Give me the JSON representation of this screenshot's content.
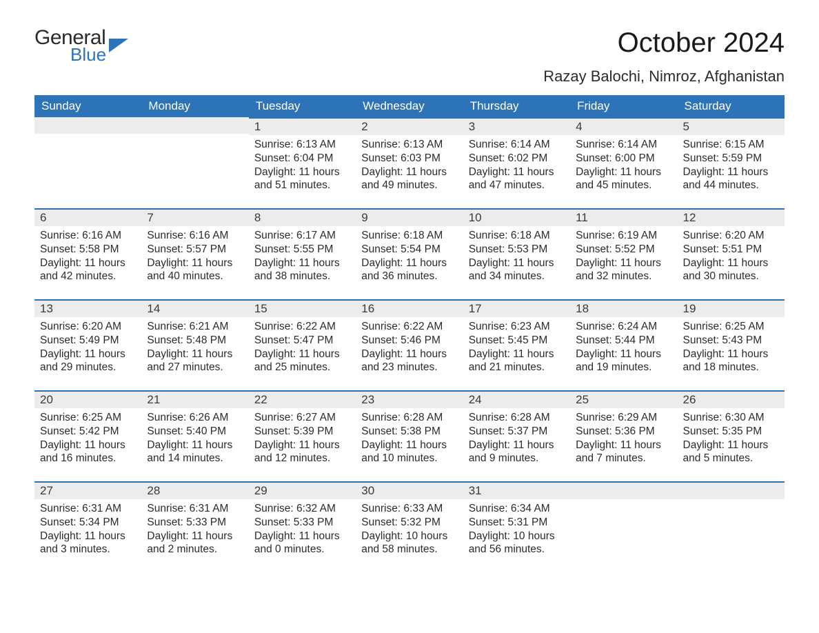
{
  "logo": {
    "word1": "General",
    "word2": "Blue"
  },
  "title": "October 2024",
  "subtitle": "Razay Balochi, Nimroz, Afghanistan",
  "day_headers": [
    "Sunday",
    "Monday",
    "Tuesday",
    "Wednesday",
    "Thursday",
    "Friday",
    "Saturday"
  ],
  "colors": {
    "header_bg": "#2d73b8",
    "header_text": "#ffffff",
    "daynum_bg": "#ececec",
    "accent_border": "#2d73b8",
    "body_text": "#2b2b2b",
    "page_bg": "#ffffff"
  },
  "fonts": {
    "title_size_pt": 30,
    "subtitle_size_pt": 17,
    "header_size_pt": 13,
    "body_size_pt": 12
  },
  "weeks": [
    [
      {
        "n": "",
        "sr": "",
        "ss": "",
        "dl1": "",
        "dl2": ""
      },
      {
        "n": "",
        "sr": "",
        "ss": "",
        "dl1": "",
        "dl2": ""
      },
      {
        "n": "1",
        "sr": "Sunrise: 6:13 AM",
        "ss": "Sunset: 6:04 PM",
        "dl1": "Daylight: 11 hours",
        "dl2": "and 51 minutes."
      },
      {
        "n": "2",
        "sr": "Sunrise: 6:13 AM",
        "ss": "Sunset: 6:03 PM",
        "dl1": "Daylight: 11 hours",
        "dl2": "and 49 minutes."
      },
      {
        "n": "3",
        "sr": "Sunrise: 6:14 AM",
        "ss": "Sunset: 6:02 PM",
        "dl1": "Daylight: 11 hours",
        "dl2": "and 47 minutes."
      },
      {
        "n": "4",
        "sr": "Sunrise: 6:14 AM",
        "ss": "Sunset: 6:00 PM",
        "dl1": "Daylight: 11 hours",
        "dl2": "and 45 minutes."
      },
      {
        "n": "5",
        "sr": "Sunrise: 6:15 AM",
        "ss": "Sunset: 5:59 PM",
        "dl1": "Daylight: 11 hours",
        "dl2": "and 44 minutes."
      }
    ],
    [
      {
        "n": "6",
        "sr": "Sunrise: 6:16 AM",
        "ss": "Sunset: 5:58 PM",
        "dl1": "Daylight: 11 hours",
        "dl2": "and 42 minutes."
      },
      {
        "n": "7",
        "sr": "Sunrise: 6:16 AM",
        "ss": "Sunset: 5:57 PM",
        "dl1": "Daylight: 11 hours",
        "dl2": "and 40 minutes."
      },
      {
        "n": "8",
        "sr": "Sunrise: 6:17 AM",
        "ss": "Sunset: 5:55 PM",
        "dl1": "Daylight: 11 hours",
        "dl2": "and 38 minutes."
      },
      {
        "n": "9",
        "sr": "Sunrise: 6:18 AM",
        "ss": "Sunset: 5:54 PM",
        "dl1": "Daylight: 11 hours",
        "dl2": "and 36 minutes."
      },
      {
        "n": "10",
        "sr": "Sunrise: 6:18 AM",
        "ss": "Sunset: 5:53 PM",
        "dl1": "Daylight: 11 hours",
        "dl2": "and 34 minutes."
      },
      {
        "n": "11",
        "sr": "Sunrise: 6:19 AM",
        "ss": "Sunset: 5:52 PM",
        "dl1": "Daylight: 11 hours",
        "dl2": "and 32 minutes."
      },
      {
        "n": "12",
        "sr": "Sunrise: 6:20 AM",
        "ss": "Sunset: 5:51 PM",
        "dl1": "Daylight: 11 hours",
        "dl2": "and 30 minutes."
      }
    ],
    [
      {
        "n": "13",
        "sr": "Sunrise: 6:20 AM",
        "ss": "Sunset: 5:49 PM",
        "dl1": "Daylight: 11 hours",
        "dl2": "and 29 minutes."
      },
      {
        "n": "14",
        "sr": "Sunrise: 6:21 AM",
        "ss": "Sunset: 5:48 PM",
        "dl1": "Daylight: 11 hours",
        "dl2": "and 27 minutes."
      },
      {
        "n": "15",
        "sr": "Sunrise: 6:22 AM",
        "ss": "Sunset: 5:47 PM",
        "dl1": "Daylight: 11 hours",
        "dl2": "and 25 minutes."
      },
      {
        "n": "16",
        "sr": "Sunrise: 6:22 AM",
        "ss": "Sunset: 5:46 PM",
        "dl1": "Daylight: 11 hours",
        "dl2": "and 23 minutes."
      },
      {
        "n": "17",
        "sr": "Sunrise: 6:23 AM",
        "ss": "Sunset: 5:45 PM",
        "dl1": "Daylight: 11 hours",
        "dl2": "and 21 minutes."
      },
      {
        "n": "18",
        "sr": "Sunrise: 6:24 AM",
        "ss": "Sunset: 5:44 PM",
        "dl1": "Daylight: 11 hours",
        "dl2": "and 19 minutes."
      },
      {
        "n": "19",
        "sr": "Sunrise: 6:25 AM",
        "ss": "Sunset: 5:43 PM",
        "dl1": "Daylight: 11 hours",
        "dl2": "and 18 minutes."
      }
    ],
    [
      {
        "n": "20",
        "sr": "Sunrise: 6:25 AM",
        "ss": "Sunset: 5:42 PM",
        "dl1": "Daylight: 11 hours",
        "dl2": "and 16 minutes."
      },
      {
        "n": "21",
        "sr": "Sunrise: 6:26 AM",
        "ss": "Sunset: 5:40 PM",
        "dl1": "Daylight: 11 hours",
        "dl2": "and 14 minutes."
      },
      {
        "n": "22",
        "sr": "Sunrise: 6:27 AM",
        "ss": "Sunset: 5:39 PM",
        "dl1": "Daylight: 11 hours",
        "dl2": "and 12 minutes."
      },
      {
        "n": "23",
        "sr": "Sunrise: 6:28 AM",
        "ss": "Sunset: 5:38 PM",
        "dl1": "Daylight: 11 hours",
        "dl2": "and 10 minutes."
      },
      {
        "n": "24",
        "sr": "Sunrise: 6:28 AM",
        "ss": "Sunset: 5:37 PM",
        "dl1": "Daylight: 11 hours",
        "dl2": "and 9 minutes."
      },
      {
        "n": "25",
        "sr": "Sunrise: 6:29 AM",
        "ss": "Sunset: 5:36 PM",
        "dl1": "Daylight: 11 hours",
        "dl2": "and 7 minutes."
      },
      {
        "n": "26",
        "sr": "Sunrise: 6:30 AM",
        "ss": "Sunset: 5:35 PM",
        "dl1": "Daylight: 11 hours",
        "dl2": "and 5 minutes."
      }
    ],
    [
      {
        "n": "27",
        "sr": "Sunrise: 6:31 AM",
        "ss": "Sunset: 5:34 PM",
        "dl1": "Daylight: 11 hours",
        "dl2": "and 3 minutes."
      },
      {
        "n": "28",
        "sr": "Sunrise: 6:31 AM",
        "ss": "Sunset: 5:33 PM",
        "dl1": "Daylight: 11 hours",
        "dl2": "and 2 minutes."
      },
      {
        "n": "29",
        "sr": "Sunrise: 6:32 AM",
        "ss": "Sunset: 5:33 PM",
        "dl1": "Daylight: 11 hours",
        "dl2": "and 0 minutes."
      },
      {
        "n": "30",
        "sr": "Sunrise: 6:33 AM",
        "ss": "Sunset: 5:32 PM",
        "dl1": "Daylight: 10 hours",
        "dl2": "and 58 minutes."
      },
      {
        "n": "31",
        "sr": "Sunrise: 6:34 AM",
        "ss": "Sunset: 5:31 PM",
        "dl1": "Daylight: 10 hours",
        "dl2": "and 56 minutes."
      },
      {
        "n": "",
        "sr": "",
        "ss": "",
        "dl1": "",
        "dl2": ""
      },
      {
        "n": "",
        "sr": "",
        "ss": "",
        "dl1": "",
        "dl2": ""
      }
    ]
  ]
}
